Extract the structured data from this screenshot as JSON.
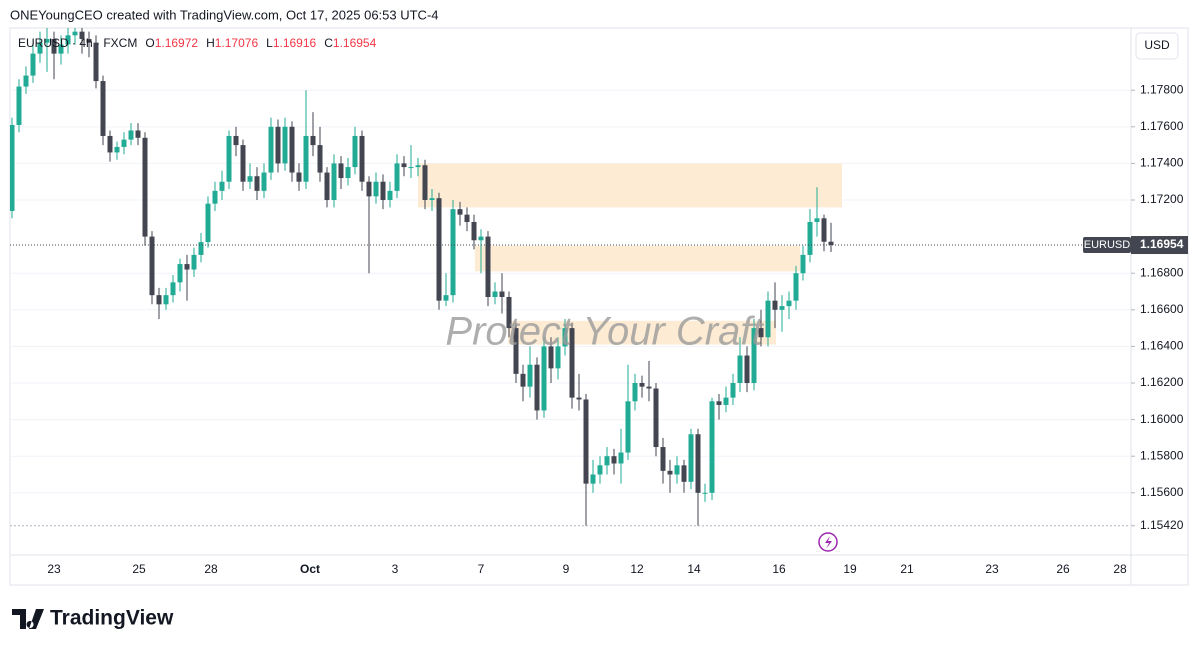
{
  "header": "ONEYoungCEO created with TradingView.com, Oct 17, 2025 06:53 UTC-4",
  "footer_logo": "TradingView",
  "chart_data": {
    "type": "candlestick",
    "symbol_line": "EURUSD · 4h · FXCM",
    "ohlc_labels": [
      "O",
      "H",
      "L",
      "C"
    ],
    "currency": "USD",
    "watermark": "Protect Your Craft",
    "symbol": "EURUSD",
    "up_color": "#22ab94",
    "down_color": "#434651",
    "zone_color": "#fdebd3",
    "grid": true,
    "ylim": [
      1.1526,
      1.1814
    ],
    "yticks": [
      {
        "value": 1.178,
        "label": "1.17800"
      },
      {
        "value": 1.176,
        "label": "1.17600"
      },
      {
        "value": 1.174,
        "label": "1.17400"
      },
      {
        "value": 1.172,
        "label": "1.17200"
      },
      {
        "value": 1.168,
        "label": "1.16800"
      },
      {
        "value": 1.166,
        "label": "1.16600"
      },
      {
        "value": 1.164,
        "label": "1.16400"
      },
      {
        "value": 1.162,
        "label": "1.16200"
      },
      {
        "value": 1.16,
        "label": "1.16000"
      },
      {
        "value": 1.158,
        "label": "1.15800"
      },
      {
        "value": 1.156,
        "label": "1.15600"
      },
      {
        "value": 1.1542,
        "label": "1.15420"
      }
    ],
    "xticks": [
      "23",
      "25",
      "28",
      "Oct",
      "3",
      "7",
      "9",
      "12",
      "14",
      "16",
      "19",
      "21",
      "23",
      "26",
      "28"
    ],
    "zones": [
      {
        "top": 1.174,
        "bottom": 1.1716
      },
      {
        "top": 1.1695,
        "bottom": 1.1681
      },
      {
        "top": 1.1654,
        "bottom": 1.1641
      }
    ],
    "open": [
      1.1714,
      1.1761,
      1.1782,
      1.1788,
      1.18,
      1.1806,
      1.1808,
      1.18,
      1.1805,
      1.181,
      1.1812,
      1.1808,
      1.1806,
      1.1785,
      1.1755,
      1.1746,
      1.1749,
      1.1753,
      1.1758,
      1.1754,
      1.17,
      1.1668,
      1.1663,
      1.1668,
      1.1675,
      1.1685,
      1.1682,
      1.169,
      1.1697,
      1.1718,
      1.1725,
      1.173,
      1.1755,
      1.175,
      1.173,
      1.1733,
      1.1725,
      1.1735,
      1.176,
      1.174,
      1.176,
      1.1735,
      1.173,
      1.1755,
      1.175,
      1.1735,
      1.172,
      1.174,
      1.1732,
      1.1738,
      1.1755,
      1.173,
      1.1722,
      1.173,
      1.172,
      1.1725,
      1.174,
      1.1738,
      1.1738,
      1.1739,
      1.172,
      1.1721,
      1.1665,
      1.1668,
      1.1715,
      1.1712,
      1.1708,
      1.1698,
      1.17,
      1.1667,
      1.167,
      1.1667,
      1.165,
      1.1625,
      1.1618,
      1.163,
      1.1605,
      1.164,
      1.1628,
      1.164,
      1.165,
      1.1612,
      1.1611,
      1.1565,
      1.157,
      1.1575,
      1.158,
      1.1576,
      1.1582,
      1.161,
      1.162,
      1.1618,
      1.1617,
      1.1585,
      1.1572,
      1.157,
      1.1575,
      1.1566,
      1.1592,
      1.156,
      1.156,
      1.161,
      1.1608,
      1.1612,
      1.162,
      1.1635,
      1.162,
      1.165,
      1.1645,
      1.1665,
      1.166,
      1.1662,
      1.1665,
      1.168,
      1.169,
      1.1708,
      1.171,
      1.16972
    ],
    "high": [
      1.1765,
      1.1786,
      1.1793,
      1.1806,
      1.1812,
      1.1814,
      1.1812,
      1.181,
      1.1815,
      1.1818,
      1.1816,
      1.1812,
      1.181,
      1.1788,
      1.1758,
      1.1752,
      1.1757,
      1.1762,
      1.1762,
      1.1757,
      1.1703,
      1.1672,
      1.1672,
      1.1679,
      1.1688,
      1.169,
      1.1694,
      1.1702,
      1.1722,
      1.173,
      1.1736,
      1.1758,
      1.176,
      1.1753,
      1.174,
      1.1738,
      1.174,
      1.1765,
      1.1764,
      1.1765,
      1.1763,
      1.174,
      1.178,
      1.1768,
      1.176,
      1.1738,
      1.1745,
      1.1744,
      1.1743,
      1.176,
      1.1758,
      1.1733,
      1.1735,
      1.1734,
      1.173,
      1.1745,
      1.1744,
      1.175,
      1.1743,
      1.1742,
      1.1726,
      1.1724,
      1.168,
      1.172,
      1.1719,
      1.1716,
      1.1712,
      1.1704,
      1.1703,
      1.1675,
      1.168,
      1.167,
      1.1653,
      1.163,
      1.164,
      1.1634,
      1.1645,
      1.1645,
      1.1645,
      1.1655,
      1.1653,
      1.1625,
      1.1614,
      1.1578,
      1.158,
      1.1585,
      1.1584,
      1.1595,
      1.163,
      1.1625,
      1.1624,
      1.1632,
      1.162,
      1.159,
      1.1578,
      1.158,
      1.1578,
      1.1595,
      1.1595,
      1.1565,
      1.1612,
      1.1614,
      1.1618,
      1.1625,
      1.1645,
      1.164,
      1.1655,
      1.166,
      1.167,
      1.1675,
      1.1668,
      1.167,
      1.1684,
      1.1695,
      1.1715,
      1.1727,
      1.1712,
      1.17076
    ],
    "low": [
      1.171,
      1.1757,
      1.1778,
      1.1784,
      1.1795,
      1.179,
      1.1786,
      1.1794,
      1.18,
      1.1805,
      1.18,
      1.1798,
      1.1781,
      1.175,
      1.1741,
      1.1742,
      1.1745,
      1.175,
      1.175,
      1.1695,
      1.1663,
      1.1655,
      1.166,
      1.1664,
      1.167,
      1.1665,
      1.1678,
      1.1686,
      1.1694,
      1.1714,
      1.172,
      1.1726,
      1.1744,
      1.1725,
      1.1726,
      1.172,
      1.1721,
      1.1731,
      1.1735,
      1.1736,
      1.173,
      1.1725,
      1.1726,
      1.1744,
      1.173,
      1.1716,
      1.1716,
      1.1726,
      1.1728,
      1.1734,
      1.1725,
      1.168,
      1.1718,
      1.1715,
      1.1716,
      1.1721,
      1.1733,
      1.1732,
      1.1733,
      1.1715,
      1.1714,
      1.166,
      1.1662,
      1.1664,
      1.1706,
      1.1703,
      1.1693,
      1.168,
      1.1662,
      1.1663,
      1.1658,
      1.1645,
      1.162,
      1.161,
      1.1612,
      1.16,
      1.1601,
      1.162,
      1.1622,
      1.1635,
      1.1606,
      1.1605,
      1.1542,
      1.156,
      1.1565,
      1.157,
      1.157,
      1.1565,
      1.1578,
      1.1605,
      1.1612,
      1.161,
      1.158,
      1.1565,
      1.156,
      1.1565,
      1.156,
      1.1562,
      1.1542,
      1.1555,
      1.1556,
      1.16,
      1.1604,
      1.1608,
      1.1615,
      1.1615,
      1.1616,
      1.164,
      1.164,
      1.165,
      1.1648,
      1.1655,
      1.166,
      1.1676,
      1.1686,
      1.17,
      1.1692,
      1.16916
    ],
    "close": [
      1.1761,
      1.1782,
      1.1788,
      1.18,
      1.1806,
      1.1808,
      1.18,
      1.1805,
      1.181,
      1.1812,
      1.1808,
      1.1806,
      1.1785,
      1.1755,
      1.1746,
      1.1749,
      1.1753,
      1.1758,
      1.1754,
      1.17,
      1.1668,
      1.1663,
      1.1668,
      1.1675,
      1.1685,
      1.1682,
      1.169,
      1.1697,
      1.1718,
      1.1725,
      1.173,
      1.1755,
      1.175,
      1.173,
      1.1733,
      1.1725,
      1.1735,
      1.176,
      1.174,
      1.176,
      1.1735,
      1.173,
      1.1755,
      1.175,
      1.1735,
      1.172,
      1.174,
      1.1732,
      1.1738,
      1.1755,
      1.173,
      1.1722,
      1.173,
      1.172,
      1.1725,
      1.174,
      1.1738,
      1.1738,
      1.1739,
      1.172,
      1.1721,
      1.1665,
      1.1668,
      1.1715,
      1.1712,
      1.1708,
      1.1698,
      1.17,
      1.1667,
      1.167,
      1.1667,
      1.165,
      1.1625,
      1.1618,
      1.163,
      1.1605,
      1.164,
      1.1628,
      1.164,
      1.165,
      1.1612,
      1.1611,
      1.1565,
      1.157,
      1.1575,
      1.158,
      1.1576,
      1.1582,
      1.161,
      1.162,
      1.1618,
      1.1617,
      1.1585,
      1.1572,
      1.157,
      1.1575,
      1.1566,
      1.1592,
      1.156,
      1.156,
      1.161,
      1.1608,
      1.1612,
      1.162,
      1.1635,
      1.162,
      1.165,
      1.1645,
      1.1665,
      1.166,
      1.1662,
      1.1665,
      1.168,
      1.169,
      1.1708,
      1.171,
      1.16972,
      1.16954
    ]
  }
}
